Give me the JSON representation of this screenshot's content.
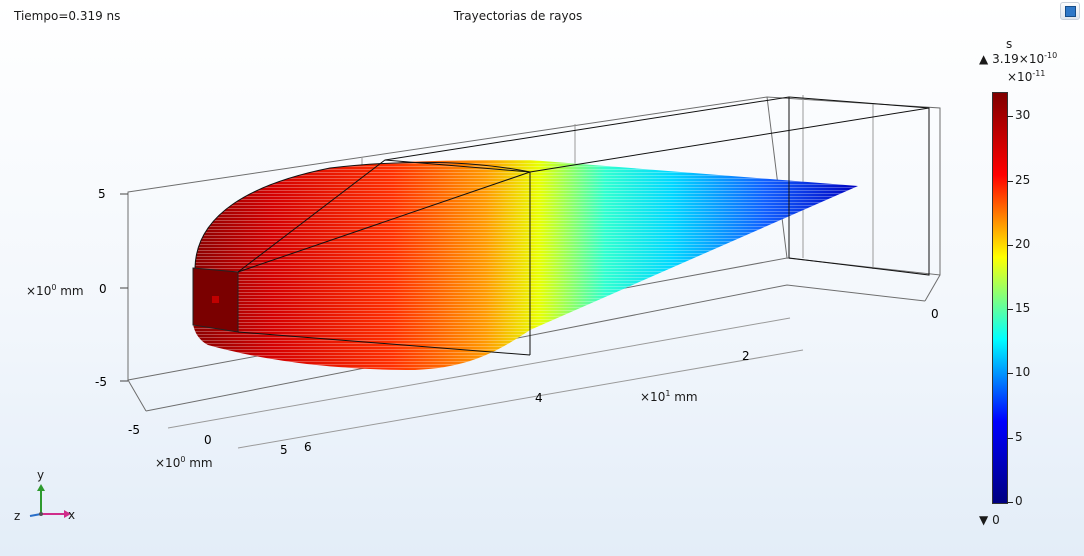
{
  "header": {
    "time_label": "Tiempo=0.319 ns",
    "title": "Trayectorias de rayos"
  },
  "axes": {
    "vertical": {
      "ticks": [
        "5",
        "0",
        "-5"
      ],
      "unit_label": "×10",
      "unit_exp": "0",
      "unit_suffix": " mm"
    },
    "depth": {
      "ticks": [
        "-5",
        "0",
        "5"
      ],
      "unit_label": "×10",
      "unit_exp": "0",
      "unit_suffix": " mm"
    },
    "long": {
      "ticks": [
        "0",
        "2",
        "4",
        "6"
      ],
      "unit_label": "×10",
      "unit_exp": "1",
      "unit_suffix": " mm"
    }
  },
  "colorbar": {
    "unit": "s",
    "max_label": "3.19×10",
    "max_exp": "-10",
    "scale_label": "×10",
    "scale_exp": "-11",
    "min_label": "0",
    "ticks": [
      "30",
      "25",
      "20",
      "15",
      "10",
      "5",
      "0"
    ],
    "tick_values": [
      30,
      25,
      20,
      15,
      10,
      5,
      0
    ],
    "range": [
      0,
      31.9
    ],
    "colormap": [
      "#000080",
      "#0000ff",
      "#00ffff",
      "#ffff00",
      "#ff0000",
      "#800000"
    ]
  },
  "triad": {
    "x": "x",
    "y": "y",
    "z": "z"
  }
}
